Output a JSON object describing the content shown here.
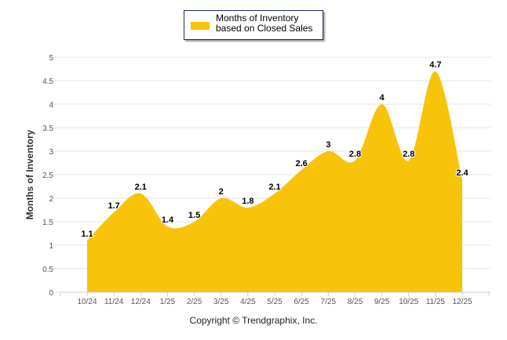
{
  "chart_data": {
    "type": "area",
    "title": "",
    "xlabel": "",
    "ylabel": "Months of Inventory",
    "ylim": [
      0,
      5
    ],
    "yticks": [
      "0",
      "0.5",
      "1",
      "1.5",
      "2",
      "2.5",
      "3",
      "3.5",
      "4",
      "4.5",
      "5"
    ],
    "grid": true,
    "legend_position": "top-center",
    "categories": [
      "10/24",
      "11/24",
      "12/24",
      "1/25",
      "2/25",
      "3/25",
      "4/25",
      "5/25",
      "6/25",
      "7/25",
      "8/25",
      "9/25",
      "10/25",
      "11/25",
      "12/25"
    ],
    "series": [
      {
        "name": "Months of Inventory based on Closed Sales",
        "values": [
          1.1,
          1.7,
          2.1,
          1.4,
          1.5,
          2,
          1.8,
          2.1,
          2.6,
          3,
          2.8,
          4,
          2.8,
          4.7,
          2.4
        ]
      }
    ],
    "color": "#f7c40a"
  },
  "legend_label": "Months of Inventory based on Closed Sales",
  "copyright": "Copyright © Trendgraphix, Inc."
}
